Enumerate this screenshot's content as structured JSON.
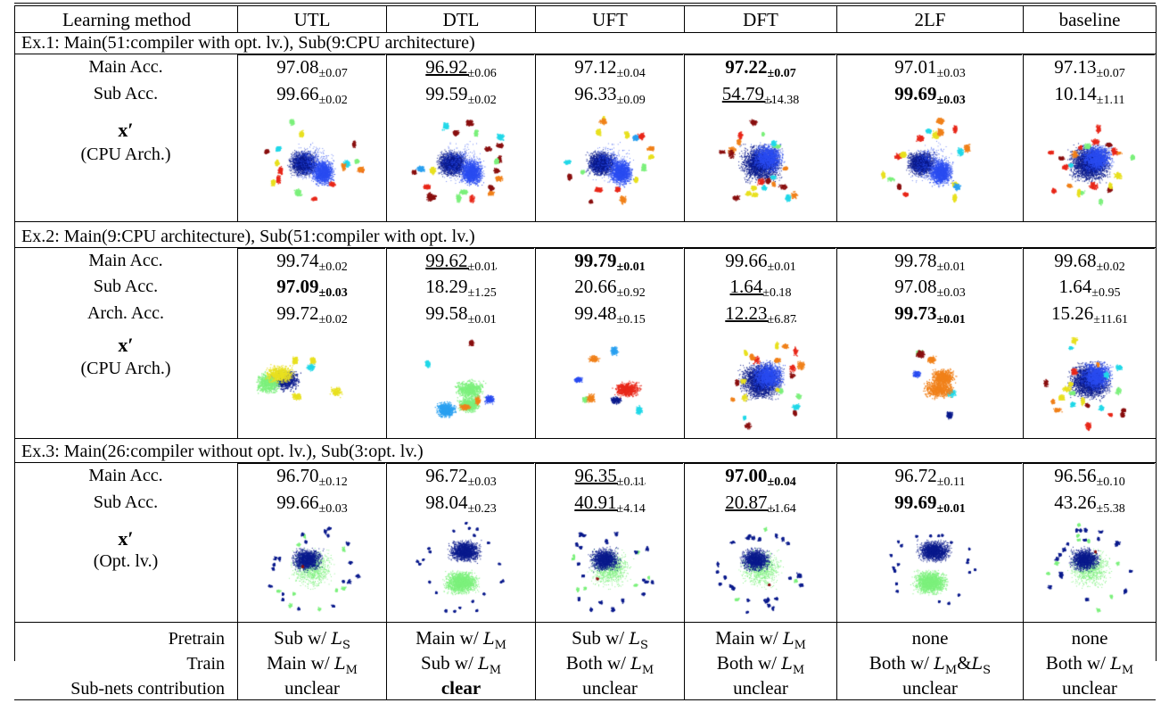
{
  "headers": [
    "Learning method",
    "UTL",
    "DTL",
    "UFT",
    "DFT",
    "2LF",
    "baseline"
  ],
  "methods": [
    "UTL",
    "DTL",
    "UFT",
    "DFT",
    "2LF",
    "baseline"
  ],
  "sections": [
    {
      "title": "Ex.1: Main(51:compiler with opt. lv.), Sub(9:CPU architecture)",
      "rows": [
        {
          "label": "Main Acc.",
          "cells": [
            {
              "v": "97.08",
              "sd": "±0.07",
              "style": ""
            },
            {
              "v": "96.92",
              "sd": "±0.06",
              "style": "ul"
            },
            {
              "v": "97.12",
              "sd": "±0.04",
              "style": ""
            },
            {
              "v": "97.22",
              "sd": "±0.07",
              "style": "bold"
            },
            {
              "v": "97.01",
              "sd": "±0.03",
              "style": ""
            },
            {
              "v": "97.13",
              "sd": "±0.07",
              "style": ""
            }
          ]
        },
        {
          "label": "Sub Acc.",
          "cells": [
            {
              "v": "99.66",
              "sd": "±0.02",
              "style": ""
            },
            {
              "v": "99.59",
              "sd": "±0.02",
              "style": ""
            },
            {
              "v": "96.33",
              "sd": "±0.09",
              "style": ""
            },
            {
              "v": "54.79",
              "sd": "±14.38",
              "style": "ul"
            },
            {
              "v": "99.69",
              "sd": "±0.03",
              "style": "bold"
            },
            {
              "v": "10.14",
              "sd": "±1.11",
              "style": ""
            }
          ]
        }
      ],
      "xlabel": "x′",
      "xsub": "(CPU Arch.)"
    },
    {
      "title": "Ex.2: Main(9:CPU architecture), Sub(51:compiler with opt. lv.)",
      "rows": [
        {
          "label": "Main Acc.",
          "cells": [
            {
              "v": "99.74",
              "sd": "±0.02",
              "style": ""
            },
            {
              "v": "99.62",
              "sd": "±0.01",
              "style": "ul"
            },
            {
              "v": "99.79",
              "sd": "±0.01",
              "style": "bold"
            },
            {
              "v": "99.66",
              "sd": "±0.01",
              "style": ""
            },
            {
              "v": "99.78",
              "sd": "±0.01",
              "style": ""
            },
            {
              "v": "99.68",
              "sd": "±0.02",
              "style": ""
            }
          ]
        },
        {
          "label": "Sub Acc.",
          "cells": [
            {
              "v": "97.09",
              "sd": "±0.03",
              "style": "bold"
            },
            {
              "v": "18.29",
              "sd": "±1.25",
              "style": ""
            },
            {
              "v": "20.66",
              "sd": "±0.92",
              "style": ""
            },
            {
              "v": "1.64",
              "sd": "±0.18",
              "style": "ul"
            },
            {
              "v": "97.08",
              "sd": "±0.03",
              "style": ""
            },
            {
              "v": "1.64",
              "sd": "±0.95",
              "style": ""
            }
          ]
        },
        {
          "label": "Arch. Acc.",
          "cells": [
            {
              "v": "99.72",
              "sd": "±0.02",
              "style": ""
            },
            {
              "v": "99.58",
              "sd": "±0.01",
              "style": ""
            },
            {
              "v": "99.48",
              "sd": "±0.15",
              "style": ""
            },
            {
              "v": "12.23",
              "sd": "±6.87",
              "style": "ul"
            },
            {
              "v": "99.73",
              "sd": "±0.01",
              "style": "bold"
            },
            {
              "v": "15.26",
              "sd": "±11.61",
              "style": ""
            }
          ]
        }
      ],
      "xlabel": "x′",
      "xsub": "(CPU Arch.)"
    },
    {
      "title": "Ex.3: Main(26:compiler without opt. lv.), Sub(3:opt. lv.)",
      "rows": [
        {
          "label": "Main Acc.",
          "cells": [
            {
              "v": "96.70",
              "sd": "±0.12",
              "style": ""
            },
            {
              "v": "96.72",
              "sd": "±0.03",
              "style": ""
            },
            {
              "v": "96.35",
              "sd": "±0.11",
              "style": "ul"
            },
            {
              "v": "97.00",
              "sd": "±0.04",
              "style": "bold"
            },
            {
              "v": "96.72",
              "sd": "±0.11",
              "style": ""
            },
            {
              "v": "96.56",
              "sd": "±0.10",
              "style": ""
            }
          ]
        },
        {
          "label": "Sub Acc.",
          "cells": [
            {
              "v": "99.66",
              "sd": "±0.03",
              "style": ""
            },
            {
              "v": "98.04",
              "sd": "±0.23",
              "style": ""
            },
            {
              "v": "40.91",
              "sd": "±4.14",
              "style": "ul"
            },
            {
              "v": "20.87",
              "sd": "±1.64",
              "style": "ul"
            },
            {
              "v": "99.69",
              "sd": "±0.01",
              "style": "bold"
            },
            {
              "v": "43.26",
              "sd": "±5.38",
              "style": ""
            }
          ]
        }
      ],
      "xlabel": "x′",
      "xsub": "(Opt. lv.)"
    }
  ],
  "footer": {
    "rows": [
      {
        "label": "Pretrain",
        "cells": [
          {
            "pre": "Sub w/ ",
            "sym": "L",
            "sub": "S",
            "post": ""
          },
          {
            "pre": "Main w/ ",
            "sym": "L",
            "sub": "M",
            "post": ""
          },
          {
            "pre": "Sub w/ ",
            "sym": "L",
            "sub": "S",
            "post": ""
          },
          {
            "pre": "Main w/ ",
            "sym": "L",
            "sub": "M",
            "post": ""
          },
          {
            "pre": "none",
            "sym": "",
            "sub": "",
            "post": ""
          },
          {
            "pre": "none",
            "sym": "",
            "sub": "",
            "post": ""
          }
        ]
      },
      {
        "label": "Train",
        "cells": [
          {
            "pre": "Main w/ ",
            "sym": "L",
            "sub": "M",
            "post": ""
          },
          {
            "pre": "Sub w/ ",
            "sym": "L",
            "sub": "M",
            "post": ""
          },
          {
            "pre": "Both w/ ",
            "sym": "L",
            "sub": "M",
            "post": ""
          },
          {
            "pre": "Both w/ ",
            "sym": "L",
            "sub": "M",
            "post": ""
          },
          {
            "pre": "Both w/ ",
            "sym": "L",
            "sub": "M",
            "post": "&",
            "sym2": "L",
            "sub2": "S"
          },
          {
            "pre": "Both w/ ",
            "sym": "L",
            "sub": "M",
            "post": ""
          }
        ]
      },
      {
        "label": "Sub-nets contribution",
        "cells": [
          {
            "pre": "unclear",
            "bold": false
          },
          {
            "pre": "clear",
            "bold": true
          },
          {
            "pre": "unclear",
            "bold": false
          },
          {
            "pre": "unclear",
            "bold": false
          },
          {
            "pre": "unclear",
            "bold": false
          },
          {
            "pre": "unclear",
            "bold": false
          }
        ]
      }
    ]
  },
  "colors": {
    "navy": "#0a1a8c",
    "blue": "#2a4cf0",
    "cyan": "#22d8e8",
    "sky": "#2aa0f0",
    "green": "#7cf07c",
    "yellow": "#e8e020",
    "orange": "#f0801a",
    "red": "#e8281a",
    "darkred": "#8a1010"
  }
}
